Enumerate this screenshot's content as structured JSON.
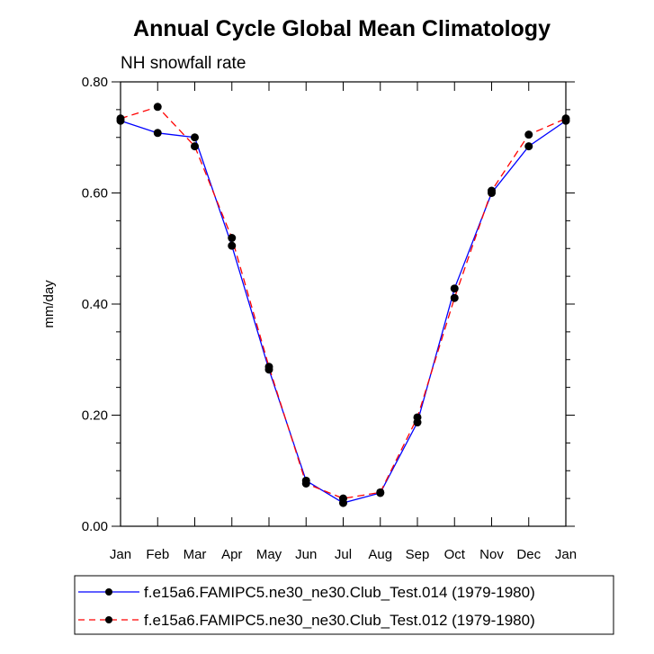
{
  "chart_data": {
    "type": "line",
    "title": "Annual Cycle Global Mean Climatology",
    "subtitle": "NH snowfall rate",
    "xlabel": "",
    "ylabel": "mm/day",
    "categories": [
      "Jan",
      "Feb",
      "Mar",
      "Apr",
      "May",
      "Jun",
      "Jul",
      "Aug",
      "Sep",
      "Oct",
      "Nov",
      "Dec",
      "Jan"
    ],
    "ylim": [
      0,
      0.8
    ],
    "yticks": [
      0.0,
      0.2,
      0.4,
      0.6,
      0.8
    ],
    "ytick_labels": [
      "0.00",
      "0.20",
      "0.40",
      "0.60",
      "0.80"
    ],
    "grid": false,
    "legend_position": "bottom",
    "series": [
      {
        "name": "f.e15a6.FAMIPC5.ne30_ne30.Club_Test.014 (1979-1980)",
        "color": "#0000ff",
        "dash": "solid",
        "values": [
          0.73,
          0.708,
          0.7,
          0.505,
          0.282,
          0.082,
          0.042,
          0.06,
          0.187,
          0.428,
          0.6,
          0.684,
          0.73
        ]
      },
      {
        "name": "f.e15a6.FAMIPC5.ne30_ne30.Club_Test.012 (1979-1980)",
        "color": "#ff0000",
        "dash": "dashed",
        "values": [
          0.734,
          0.755,
          0.684,
          0.519,
          0.287,
          0.077,
          0.05,
          0.061,
          0.196,
          0.411,
          0.604,
          0.705,
          0.734
        ]
      }
    ]
  }
}
